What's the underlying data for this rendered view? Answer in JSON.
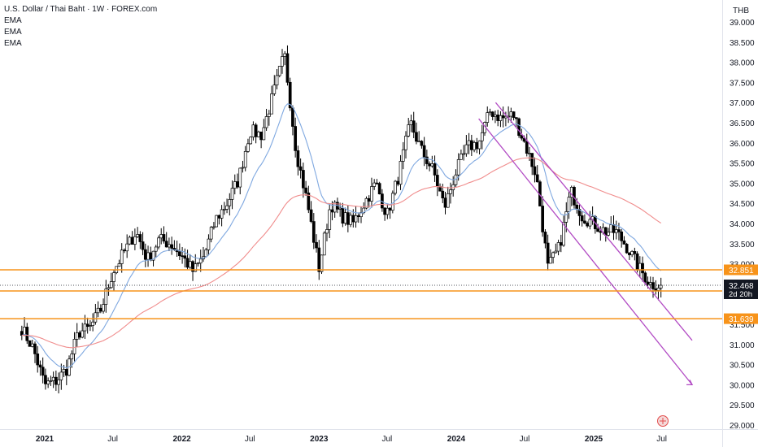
{
  "header": {
    "title": "U.S. Dollar / Thai Baht · 1W · FOREX.com",
    "indicators": [
      "EMA",
      "EMA",
      "EMA"
    ],
    "currency": "THB"
  },
  "price_badge": {
    "price": "32.468",
    "countdown": "2d 20h"
  },
  "levels": [
    {
      "value": 32.851,
      "label": "32.851"
    },
    {
      "value": 32.327,
      "label": "32.327"
    },
    {
      "value": 31.639,
      "label": "31.639"
    }
  ],
  "chart_data": {
    "type": "candlestick",
    "title": "U.S. Dollar / Thai Baht · 1W · FOREX.com",
    "y_axis": {
      "ticks": [
        "39.000",
        "38.500",
        "38.000",
        "37.500",
        "37.000",
        "36.500",
        "36.000",
        "35.500",
        "35.000",
        "34.500",
        "34.000",
        "33.500",
        "33.000",
        "31.500",
        "31.000",
        "30.500",
        "30.000",
        "29.500",
        "29.000"
      ],
      "range": [
        29.0,
        39.0
      ],
      "position": "right"
    },
    "x_axis": {
      "ticks": [
        "2021",
        "Jul",
        "2022",
        "Jul",
        "2023",
        "Jul",
        "2024",
        "Jul",
        "2025",
        "Jul"
      ],
      "range": [
        "2020-11",
        "2025-08"
      ]
    },
    "close_path": [
      [
        "2020-11-01",
        31.4
      ],
      [
        "2020-12-01",
        30.9
      ],
      [
        "2021-01-01",
        30.0
      ],
      [
        "2021-02-01",
        30.1
      ],
      [
        "2021-03-01",
        30.4
      ],
      [
        "2021-04-01",
        31.3
      ],
      [
        "2021-05-01",
        31.4
      ],
      [
        "2021-06-01",
        31.9
      ],
      [
        "2021-07-01",
        32.8
      ],
      [
        "2021-08-01",
        33.3
      ],
      [
        "2021-09-01",
        33.8
      ],
      [
        "2021-10-01",
        33.1
      ],
      [
        "2021-11-01",
        33.6
      ],
      [
        "2021-12-01",
        33.5
      ],
      [
        "2022-01-01",
        33.2
      ],
      [
        "2022-02-01",
        32.8
      ],
      [
        "2022-03-01",
        33.2
      ],
      [
        "2022-04-01",
        34.1
      ],
      [
        "2022-05-01",
        34.5
      ],
      [
        "2022-06-01",
        35.1
      ],
      [
        "2022-07-01",
        36.3
      ],
      [
        "2022-08-01",
        36.2
      ],
      [
        "2022-09-01",
        37.2
      ],
      [
        "2022-10-01",
        38.2
      ],
      [
        "2022-11-01",
        35.8
      ],
      [
        "2022-12-01",
        34.5
      ],
      [
        "2023-01-01",
        32.9
      ],
      [
        "2023-02-01",
        34.5
      ],
      [
        "2023-03-01",
        34.2
      ],
      [
        "2023-04-01",
        34.0
      ],
      [
        "2023-05-01",
        34.5
      ],
      [
        "2023-06-01",
        35.0
      ],
      [
        "2023-07-01",
        34.2
      ],
      [
        "2023-08-01",
        35.2
      ],
      [
        "2023-09-01",
        36.5
      ],
      [
        "2023-10-01",
        35.8
      ],
      [
        "2023-11-01",
        35.3
      ],
      [
        "2023-12-01",
        34.4
      ],
      [
        "2024-01-01",
        35.3
      ],
      [
        "2024-02-01",
        35.9
      ],
      [
        "2024-03-01",
        36.0
      ],
      [
        "2024-04-01",
        36.8
      ],
      [
        "2024-05-01",
        36.6
      ],
      [
        "2024-06-01",
        36.7
      ],
      [
        "2024-07-01",
        36.0
      ],
      [
        "2024-08-01",
        35.2
      ],
      [
        "2024-09-01",
        32.9
      ],
      [
        "2024-10-01",
        33.4
      ],
      [
        "2024-11-01",
        34.8
      ],
      [
        "2024-12-01",
        34.2
      ],
      [
        "2025-01-01",
        34.0
      ],
      [
        "2025-02-01",
        33.8
      ],
      [
        "2025-03-01",
        33.8
      ],
      [
        "2025-04-01",
        33.4
      ],
      [
        "2025-05-01",
        32.9
      ],
      [
        "2025-06-01",
        32.5
      ],
      [
        "2025-07-01",
        32.47
      ]
    ],
    "ema_series": [
      {
        "color": "#7fa8e0",
        "smoothing": 0.45
      },
      {
        "color": "#f08c8c",
        "smoothing": 0.22
      }
    ],
    "colors": {
      "up": "#ffffff",
      "down": "#000000",
      "wick": "#000000",
      "level": "#f7931a",
      "channel": "#b24bc4"
    },
    "channel_lines": [
      {
        "from": [
          "2024-04-15",
          37.0
        ],
        "to": [
          "2025-09-20",
          31.1
        ]
      },
      {
        "from": [
          "2024-03-01",
          36.6
        ],
        "to": [
          "2025-09-20",
          30.0
        ]
      }
    ]
  }
}
